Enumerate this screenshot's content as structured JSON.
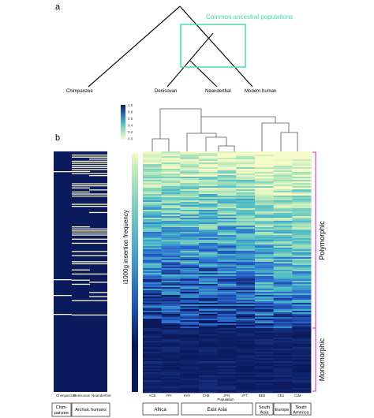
{
  "panel_a": {
    "label": "a",
    "highlight_label": "Common ancestral populations",
    "highlight_color": "#3fdc9a",
    "taxa": [
      "Chimpanzee",
      "Denisovan",
      "Neanderthal",
      "Modern human"
    ]
  },
  "panel_b": {
    "label": "b",
    "left_columns": [
      "Chimpanzee",
      "Denisovan",
      "Neanderthal"
    ],
    "left_groups": [
      {
        "label": "Chim-\npanzee"
      },
      {
        "label": "Archaic humans"
      }
    ],
    "colorbar": {
      "ticks": [
        "1.0",
        "0.8",
        "0.6",
        "0.4",
        "0.2",
        "0.0"
      ],
      "label": "i1000g insertion frequency",
      "colors": [
        "#0b1a5c",
        "#2a64d0",
        "#49b9c6",
        "#a8e3b9",
        "#f5fbc6"
      ]
    },
    "heatmap": {
      "columns": [
        "ACB",
        "YRI",
        "KHV",
        "CHB",
        "JPN",
        "JPT",
        "BEB",
        "CEU",
        "CLM"
      ],
      "xlabel": "Population",
      "groups": [
        {
          "label": "Africa"
        },
        {
          "label": "East Asia"
        },
        {
          "label": "South\nAsia"
        },
        {
          "label": "Europe"
        },
        {
          "label": "South\nAmerica"
        }
      ],
      "polymorphic_label": "Polymorphic",
      "monomorphic_label": "Monomorphic",
      "bracket_color": "#cc2aa8"
    }
  }
}
